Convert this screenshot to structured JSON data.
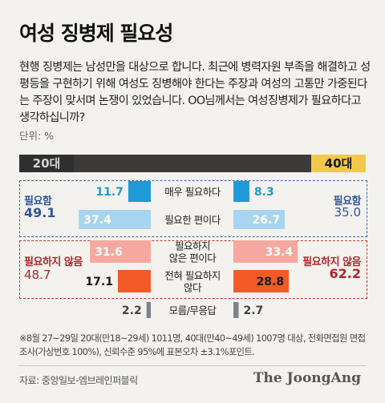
{
  "title": "여성 징병제 필요성",
  "question": "현행 징병제는 남성만을 대상으로 합니다. 최근에 병력자원 부족을 해결하고 성 평등을 구현하기 위해 여성도 징병해야 한다는 주장과 여성의 고통만 가중된다는 주장이 맞서며 논쟁이 있었습니다. OO님께서는 여성징병제가 필요하다고 생각하십니까?",
  "unit": "단위: %",
  "footnote": "※8월 27~29일 20대(만18~29세) 1011명, 40대(만40~49세) 1007명 대상, 전화면접원 면접조사(가상번호 100%), 신뢰수준 95%에 표본오차 ±3.1%포인트.",
  "source": "자료: 중앙일보-엠브레인퍼블릭",
  "logo": "The JoongAng",
  "summary": {
    "need_label": "필요함",
    "need_20": "49.1",
    "need_40": "35.0",
    "no_need_label": "필요하지 않음",
    "no_need_20": "48.7",
    "no_need_40": "62.2"
  },
  "colors": {
    "very_need": "#1f9ad6",
    "somewhat_need": "#a7d4ef",
    "somewhat_no": "#f6a8a0",
    "not_at_all": "#f25a28",
    "dont_know": "#7a8288"
  },
  "chart_data": {
    "type": "bar",
    "groups": [
      "20대",
      "40대"
    ],
    "categories": [
      "매우 필요하다",
      "필요한 편이다",
      "필요하지 않은 편이다",
      "전혀 필요하지 않다",
      "모름/무응답"
    ],
    "category_lines": [
      [
        "매우 필요하다"
      ],
      [
        "필요한 편이다"
      ],
      [
        "필요하지",
        "않은 편이다"
      ],
      [
        "전혀 필요하지",
        "않다"
      ],
      [
        "모름/무응답"
      ]
    ],
    "series": [
      {
        "name": "20대",
        "values": [
          11.7,
          37.4,
          31.6,
          17.1,
          2.2
        ]
      },
      {
        "name": "40대",
        "values": [
          8.3,
          26.7,
          33.4,
          28.8,
          2.7
        ]
      }
    ]
  }
}
